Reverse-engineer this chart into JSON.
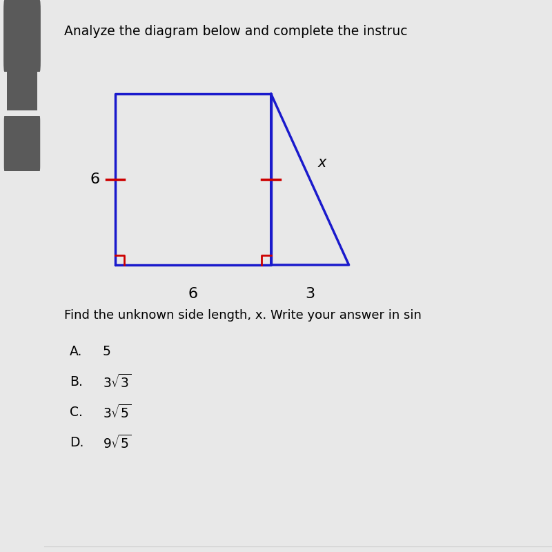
{
  "title": "Analyze the diagram below and complete the instruc",
  "subtitle": "Find the unknown side length, x. Write your answer in sin",
  "bg_color": "#e8e8e8",
  "panel_color": "#f5f5f5",
  "shape_color": "#1a1acc",
  "tick_color": "#cc0000",
  "labels": {
    "left_side": "6",
    "bottom_left": "6",
    "bottom_right": "3",
    "slant": "x"
  },
  "choices": [
    {
      "letter": "A.",
      "text": "5",
      "radical": null
    },
    {
      "letter": "B.",
      "text": "3",
      "radical": "3"
    },
    {
      "letter": "C.",
      "text": "3",
      "radical": "5"
    },
    {
      "letter": "D.",
      "text": "9",
      "radical": "5"
    }
  ],
  "left_bar_color": "#444444",
  "left_panel_color": "#555555"
}
